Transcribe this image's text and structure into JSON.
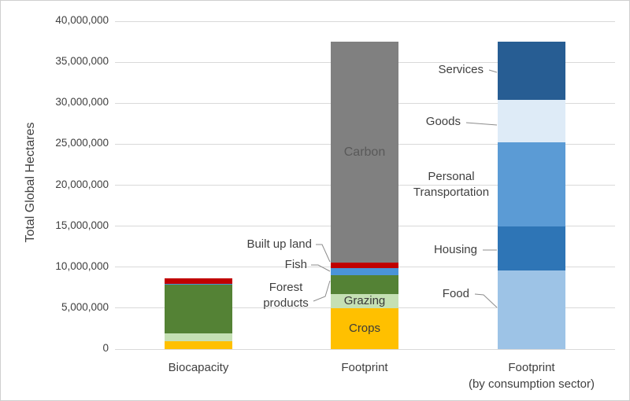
{
  "chart_data": {
    "type": "stacked_bar",
    "title": "",
    "ylabel": "Total Global Hectares",
    "ylim": [
      0,
      40000000
    ],
    "ytick_step": 5000000,
    "yticks": [
      "0",
      "5,000,000",
      "10,000,000",
      "15,000,000",
      "20,000,000",
      "25,000,000",
      "30,000,000",
      "35,000,000",
      "40,000,000"
    ],
    "grid": "horizontal",
    "legend": "none",
    "bars": [
      {
        "category": "Biocapacity",
        "category_sub": "",
        "total": 8600000,
        "segments": [
          {
            "name": "Crops",
            "value": 950000,
            "color": "#FFC000"
          },
          {
            "name": "Grazing",
            "value": 950000,
            "color": "#C5E0B4"
          },
          {
            "name": "Forest products",
            "value": 5950000,
            "color": "#548235"
          },
          {
            "name": "Fish",
            "value": 150000,
            "color": "#4A94D8"
          },
          {
            "name": "Built up land",
            "value": 600000,
            "color": "#C00000"
          }
        ]
      },
      {
        "category": "Footprint",
        "category_sub": "",
        "total": 37500000,
        "segments": [
          {
            "name": "Crops",
            "value": 4950000,
            "color": "#FFC000",
            "inside_label": "Crops"
          },
          {
            "name": "Grazing",
            "value": 1800000,
            "color": "#C5E0B4",
            "inside_label": "Grazing"
          },
          {
            "name": "Forest products",
            "value": 2300000,
            "color": "#548235"
          },
          {
            "name": "Fish",
            "value": 850000,
            "color": "#4A94D8"
          },
          {
            "name": "Built up land",
            "value": 650000,
            "color": "#C00000"
          },
          {
            "name": "Carbon",
            "value": 26950000,
            "color": "#808080",
            "inside_label": "Carbon",
            "inside_label_class": "carbon"
          }
        ]
      },
      {
        "category": "Footprint",
        "category_sub": "(by consumption sector)",
        "total": 37500000,
        "segments": [
          {
            "name": "Food",
            "value": 9600000,
            "color": "#9DC3E6"
          },
          {
            "name": "Housing",
            "value": 5400000,
            "color": "#2E75B6"
          },
          {
            "name": "Personal Transportation",
            "value": 10250000,
            "color": "#5B9BD5"
          },
          {
            "name": "Goods",
            "value": 5150000,
            "color": "#DEEBF7"
          },
          {
            "name": "Services",
            "value": 7100000,
            "color": "#275D93"
          }
        ]
      }
    ]
  },
  "annotations": {
    "built_up_land": "Built up land",
    "fish": "Fish",
    "forest_products": "Forest products",
    "services": "Services",
    "goods": "Goods",
    "personal_transportation": "Personal Transportation",
    "housing": "Housing",
    "food": "Food"
  },
  "colors": {
    "crops": "#FFC000",
    "grazing": "#C5E0B4",
    "forest_products": "#548235",
    "fish": "#4A94D8",
    "built_up_land": "#C00000",
    "carbon": "#808080",
    "food": "#9DC3E6",
    "housing": "#2E75B6",
    "personal_transportation": "#5B9BD5",
    "goods": "#DEEBF7",
    "services": "#275D93",
    "gridline": "#D9D9D9",
    "leader_line": "#8C8C8C"
  }
}
